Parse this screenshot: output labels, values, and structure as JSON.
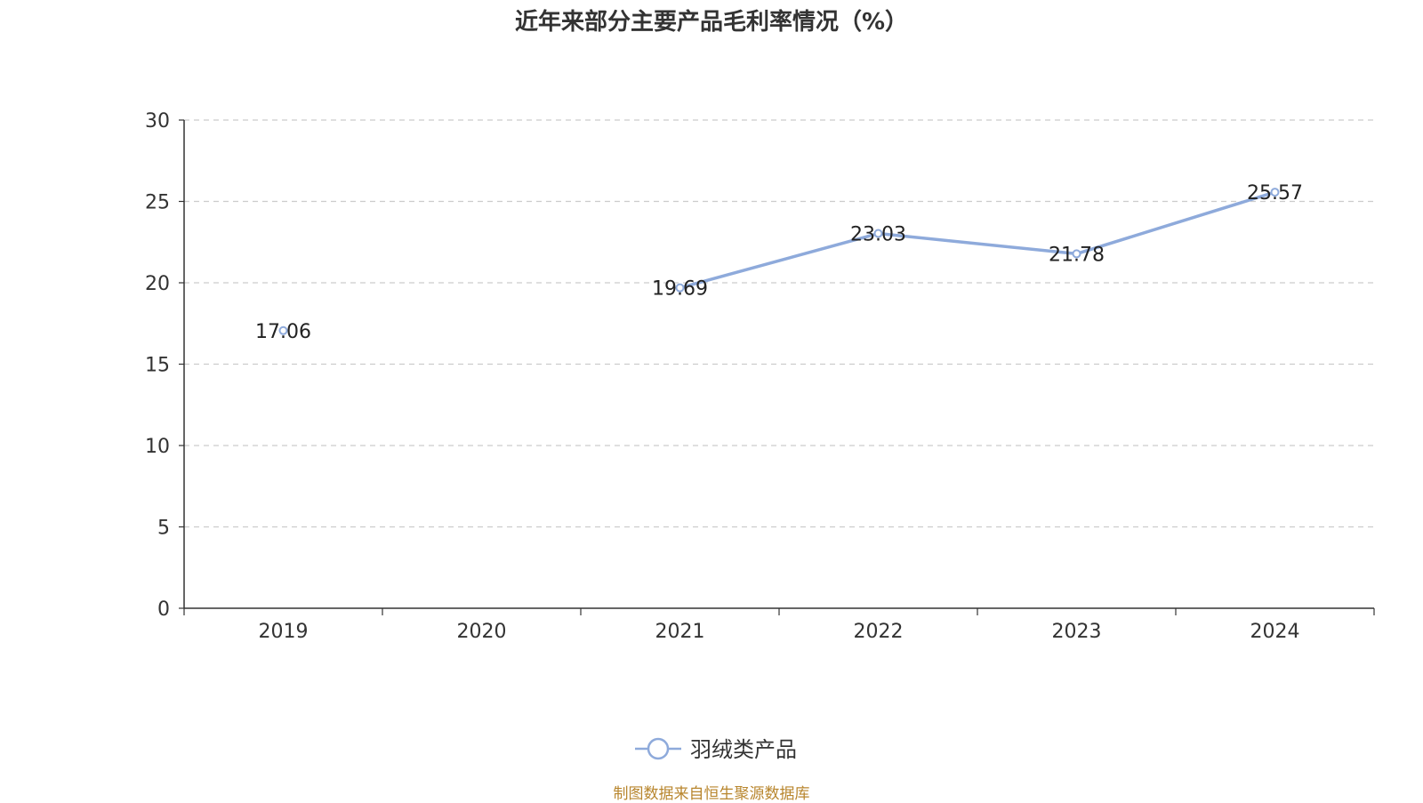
{
  "chart_data": {
    "type": "line",
    "title": "近年来部分主要产品毛利率情况（%）",
    "categories": [
      "2019",
      "2020",
      "2021",
      "2022",
      "2023",
      "2024"
    ],
    "series": [
      {
        "name": "羽绒类产品",
        "values": [
          17.06,
          null,
          19.69,
          23.03,
          21.78,
          25.57
        ],
        "labels": [
          "17.06",
          "",
          "19.69",
          "23.03",
          "21.78",
          "25.57"
        ],
        "color": "#8eaadb"
      }
    ],
    "y_ticks": [
      "0",
      "5",
      "10",
      "15",
      "20",
      "25",
      "30"
    ],
    "ylim": [
      0,
      30
    ],
    "xlabel": "",
    "ylabel": "",
    "grid": true,
    "legend_position": "bottom-center"
  },
  "source_note": "制图数据来自恒生聚源数据库",
  "colors": {
    "title": "#333333",
    "axis": "#333333",
    "grid": "#cccccc",
    "source_note": "#b8862e"
  }
}
